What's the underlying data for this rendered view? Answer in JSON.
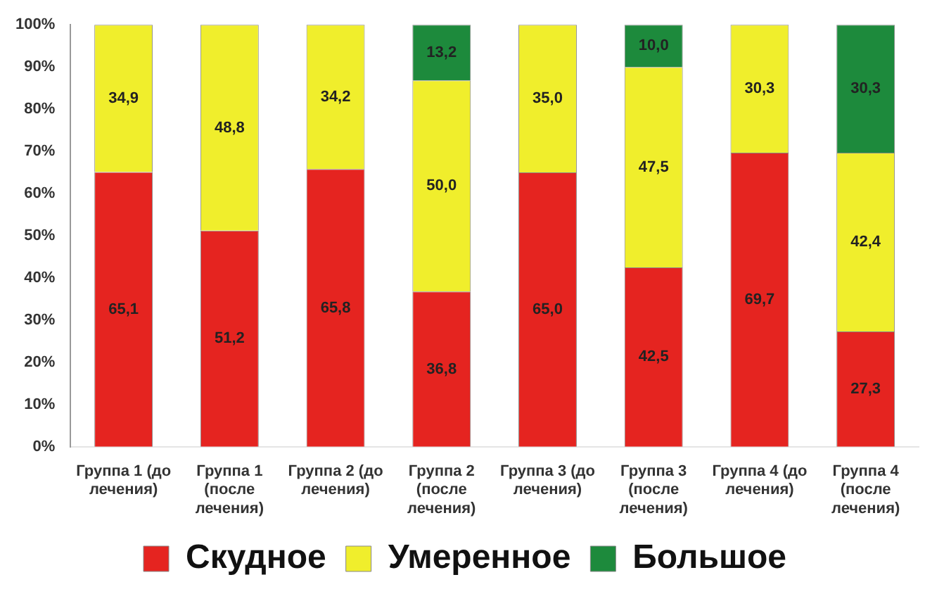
{
  "chart_data": {
    "type": "bar",
    "stacked": true,
    "categories": [
      "Группа 1 (до лечения)",
      "Группа 1 (после лечения)",
      "Группа 2 (до лечения)",
      "Группа 2 (после лечения)",
      "Группа 3 (до лечения)",
      "Группа 3 (после лечения)",
      "Группа 4 (до лечения)",
      "Группа 4 (после лечения)"
    ],
    "series": [
      {
        "name": "Скудное",
        "color": "#e52420",
        "values": [
          65.1,
          51.2,
          65.8,
          36.8,
          65.0,
          42.5,
          69.7,
          27.3
        ],
        "value_labels": [
          "65,1",
          "51,2",
          "65,8",
          "36,8",
          "65,0",
          "42,5",
          "69,7",
          "27,3"
        ]
      },
      {
        "name": "Умеренное",
        "color": "#f0ee2c",
        "values": [
          34.9,
          48.8,
          34.2,
          50.0,
          35.0,
          47.5,
          30.3,
          42.4
        ],
        "value_labels": [
          "34,9",
          "48,8",
          "34,2",
          "50,0",
          "35,0",
          "47,5",
          "30,3",
          "42,4"
        ]
      },
      {
        "name": "Большое",
        "color": "#1d8a3c",
        "values": [
          null,
          null,
          null,
          13.2,
          null,
          10.0,
          null,
          30.3
        ],
        "value_labels": [
          null,
          null,
          null,
          "13,2",
          null,
          "10,0",
          null,
          "30,3"
        ]
      }
    ],
    "ylim": [
      0,
      100
    ],
    "yticks": [
      {
        "value": 0,
        "label": "0%"
      },
      {
        "value": 10,
        "label": "10%"
      },
      {
        "value": 20,
        "label": "20%"
      },
      {
        "value": 30,
        "label": "30%"
      },
      {
        "value": 40,
        "label": "40%"
      },
      {
        "value": 50,
        "label": "50%"
      },
      {
        "value": 60,
        "label": "60%"
      },
      {
        "value": 70,
        "label": "70%"
      },
      {
        "value": 80,
        "label": "80%"
      },
      {
        "value": 90,
        "label": "90%"
      },
      {
        "value": 100,
        "label": "100%"
      }
    ],
    "grid": false,
    "legend": "bottom"
  }
}
